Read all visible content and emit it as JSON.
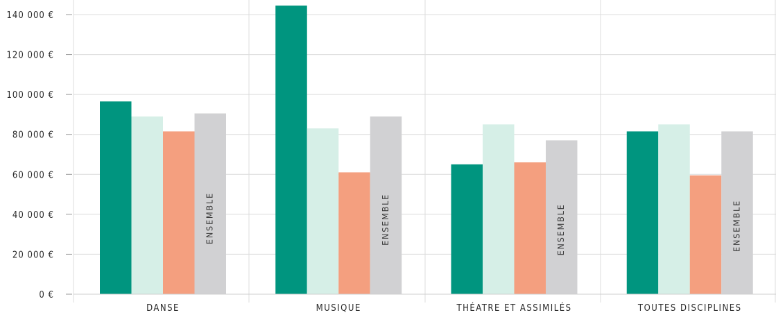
{
  "chart_data": {
    "type": "bar",
    "categories": [
      "DANSE",
      "MUSIQUE",
      "THÉATRE ET ASSIMILÉS",
      "TOUTES DISCIPLINES"
    ],
    "series": [
      {
        "color": "#00957f",
        "values": [
          96500,
          144500,
          65000,
          81500
        ]
      },
      {
        "color": "#d6efe7",
        "values": [
          89000,
          83000,
          85000,
          85000
        ]
      },
      {
        "color": "#f49f7f",
        "values": [
          81500,
          61000,
          66000,
          59500
        ]
      },
      {
        "name": "ENSEMBLE",
        "color": "#d1d1d3",
        "values": [
          90500,
          89000,
          77000,
          81500
        ]
      }
    ],
    "y_ticks": [
      "0 €",
      "20 000 €",
      "40 000 €",
      "60 000 €",
      "80 000 €",
      "100 000 €",
      "120 000 €",
      "140 000 €"
    ],
    "ylim": [
      0,
      140000
    ],
    "grid": true,
    "xlabel": "",
    "ylabel": ""
  }
}
